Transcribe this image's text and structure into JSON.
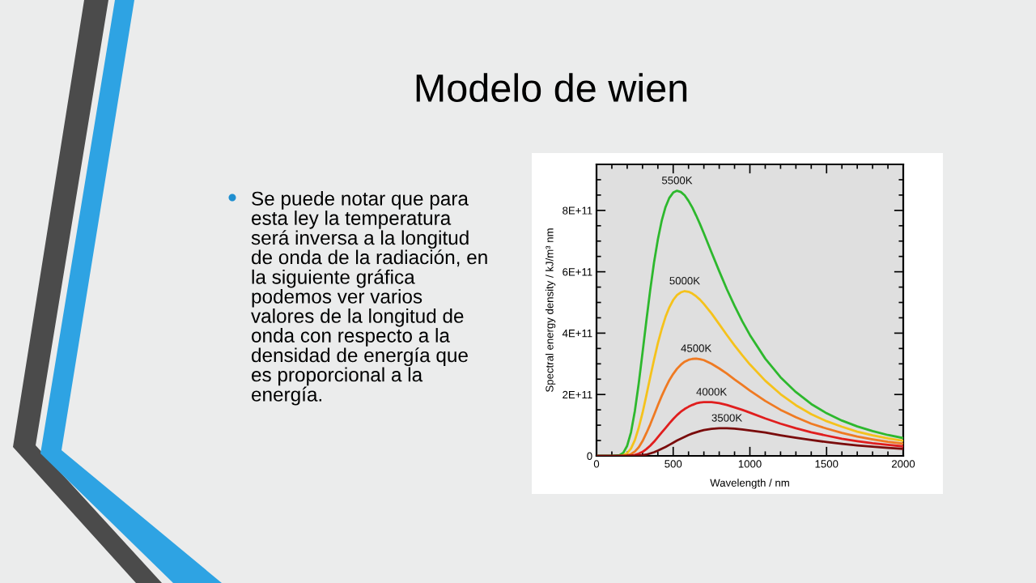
{
  "chart_data": {
    "type": "line",
    "title": "Modelo de wien",
    "xlabel": "Wavelength / nm",
    "ylabel": "Spectral energy density / kJ/m³ nm",
    "annotations": [
      "Se puede notar que para esta ley la temperatura será inversa a la longitud de onda de la radiación, en la siguiente gráfica podemos ver varios valores de la longitud de onda con respecto a la densidad de energía que es proporcional a la energía."
    ],
    "x": [
      0,
      100,
      150,
      175,
      200,
      225,
      250,
      275,
      300,
      325,
      350,
      375,
      400,
      425,
      450,
      475,
      500,
      525,
      550,
      575,
      600,
      625,
      650,
      675,
      700,
      750,
      800,
      850,
      900,
      950,
      1000,
      1100,
      1200,
      1300,
      1400,
      1500,
      1600,
      1700,
      1800,
      1900,
      2000
    ],
    "series": [
      {
        "name": "5500K",
        "color": "#2db82d",
        "values": [
          0,
          0,
          2000000000.0,
          10000000000.0,
          33000000000.0,
          77000000000.0,
          146000000000.0,
          235000000000.0,
          336000000000.0,
          440000000000.0,
          540000000000.0,
          630000000000.0,
          705000000000.0,
          766000000000.0,
          811000000000.0,
          841000000000.0,
          858000000000.0,
          864000000000.0,
          860000000000.0,
          849000000000.0,
          831000000000.0,
          809000000000.0,
          783000000000.0,
          755000000000.0,
          725000000000.0,
          663000000000.0,
          602000000000.0,
          543000000000.0,
          489000000000.0,
          439000000000.0,
          394000000000.0,
          317000000000.0,
          256000000000.0,
          208000000000.0,
          169000000000.0,
          139000000000.0,
          115000000000.0,
          96000000000.0,
          81000000000.0,
          68000000000.0,
          58000000000.0
        ]
      },
      {
        "name": "5000K",
        "color": "#f5c21b",
        "values": [
          null,
          null,
          0,
          2000000000.0,
          9000000000.0,
          24000000000.0,
          51000000000.0,
          91000000000.0,
          140000000000.0,
          197000000000.0,
          256000000000.0,
          313000000000.0,
          367000000000.0,
          413000000000.0,
          453000000000.0,
          484000000000.0,
          508000000000.0,
          524000000000.0,
          533000000000.0,
          537000000000.0,
          535000000000.0,
          529000000000.0,
          520000000000.0,
          509000000000.0,
          495000000000.0,
          464000000000.0,
          429000000000.0,
          394000000000.0,
          360000000000.0,
          328000000000.0,
          298000000000.0,
          245000000000.0,
          201000000000.0,
          165000000000.0,
          136000000000.0,
          113000000000.0,
          95000000000.0,
          79000000000.0,
          67000000000.0,
          57000000000.0,
          49000000000.0
        ]
      },
      {
        "name": "4500K",
        "color": "#ef7a22",
        "values": [
          null,
          null,
          0,
          0,
          2000000000.0,
          6000000000.0,
          14000000000.0,
          28000000000.0,
          48000000000.0,
          74000000000.0,
          102000000000.0,
          133000000000.0,
          165000000000.0,
          195000000000.0,
          222000000000.0,
          247000000000.0,
          267000000000.0,
          284000000000.0,
          297000000000.0,
          307000000000.0,
          313000000000.0,
          316000000000.0,
          317000000000.0,
          315000000000.0,
          312000000000.0,
          300000000000.0,
          285000000000.0,
          268000000000.0,
          249000000000.0,
          231000000000.0,
          213000000000.0,
          179000000000.0,
          150000000000.0,
          126000000000.0,
          105000000000.0,
          89000000000.0,
          75000000000.0,
          63000000000.0,
          54000000000.0,
          46000000000.0,
          40000000000.0
        ]
      },
      {
        "name": "4000K",
        "color": "#e01e1e",
        "values": [
          null,
          null,
          null,
          null,
          0,
          1000000000.0,
          3000000000.0,
          7000000000.0,
          13000000000.0,
          22000000000.0,
          33000000000.0,
          46000000000.0,
          61000000000.0,
          76000000000.0,
          91000000000.0,
          106000000000.0,
          120000000000.0,
          133000000000.0,
          144000000000.0,
          153000000000.0,
          160000000000.0,
          166000000000.0,
          171000000000.0,
          174000000000.0,
          175000000000.0,
          175000000000.0,
          172000000000.0,
          166000000000.0,
          158000000000.0,
          150000000000.0,
          141000000000.0,
          122000000000.0,
          105000000000.0,
          90000000000.0,
          77000000000.0,
          66000000000.0,
          56000000000.0,
          48000000000.0,
          41000000000.0,
          36000000000.0,
          31000000000.0
        ]
      },
      {
        "name": "3500K",
        "color": "#7a0c0c",
        "values": [
          0,
          0,
          0,
          0,
          0,
          0,
          0,
          1000000000.0,
          2000000000.0,
          4000000000.0,
          8000000000.0,
          12000000000.0,
          17000000000.0,
          23000000000.0,
          29000000000.0,
          36000000000.0,
          43000000000.0,
          50000000000.0,
          56000000000.0,
          62000000000.0,
          68000000000.0,
          73000000000.0,
          77000000000.0,
          81000000000.0,
          84000000000.0,
          88000000000.0,
          90000000000.0,
          90000000000.0,
          89000000000.0,
          86000000000.0,
          83000000000.0,
          76000000000.0,
          67000000000.0,
          59000000000.0,
          52000000000.0,
          45000000000.0,
          39000000000.0,
          34000000000.0,
          30000000000.0,
          26000000000.0,
          23000000000.0
        ]
      }
    ],
    "xlim": [
      0,
      2000
    ],
    "xticks": [
      0,
      {
        "value": 100,
        "label": null
      },
      {
        "value": 200,
        "label": null
      },
      {
        "value": 300,
        "label": null
      },
      {
        "value": 400,
        "label": null
      },
      500,
      {
        "value": 600,
        "label": null
      },
      {
        "value": 700,
        "label": null
      },
      {
        "value": 800,
        "label": null
      },
      {
        "value": 900,
        "label": null
      },
      1000,
      {
        "value": 1100,
        "label": null
      },
      {
        "value": 1200,
        "label": null
      },
      {
        "value": 1300,
        "label": null
      },
      {
        "value": 1400,
        "label": null
      },
      1500,
      {
        "value": 1600,
        "label": null
      },
      {
        "value": 1700,
        "label": null
      },
      {
        "value": 1800,
        "label": null
      },
      {
        "value": 1900,
        "label": null
      },
      2000
    ],
    "ylim": [
      0,
      950000000000.0
    ],
    "yticks": [
      0,
      {
        "value": 50000000000.0,
        "label": null
      },
      {
        "value": 100000000000.0,
        "label": null
      },
      {
        "value": 150000000000.0,
        "label": null
      },
      {
        "value": 200000000000.0,
        "label": "2E+11"
      },
      {
        "value": 250000000000.0,
        "label": null
      },
      {
        "value": 300000000000.0,
        "label": null
      },
      {
        "value": 350000000000.0,
        "label": null
      },
      {
        "value": 400000000000.0,
        "label": "4E+11"
      },
      {
        "value": 450000000000.0,
        "label": null
      },
      {
        "value": 500000000000.0,
        "label": null
      },
      {
        "value": 550000000000.0,
        "label": null
      },
      {
        "value": 600000000000.0,
        "label": "6E+11"
      },
      {
        "value": 650000000000.0,
        "label": null
      },
      {
        "value": 700000000000.0,
        "label": null
      },
      {
        "value": 750000000000.0,
        "label": null
      },
      {
        "value": 800000000000.0,
        "label": "8E+11"
      },
      {
        "value": 850000000000.0,
        "label": null
      },
      {
        "value": 900000000000.0,
        "label": null
      }
    ],
    "marker": "none",
    "line_style": "solid"
  }
}
